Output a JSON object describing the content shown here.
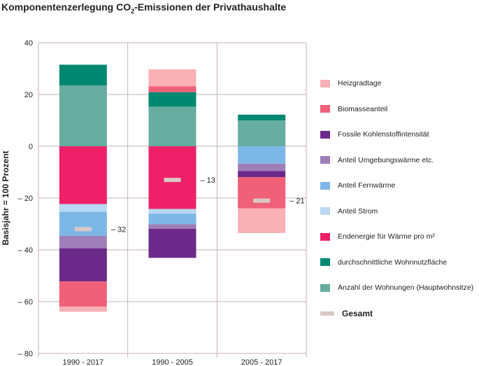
{
  "title": {
    "prefix": "Komponentenzerlegung CO",
    "sub": "2",
    "suffix": "-Emissionen der Privathaushalte"
  },
  "colors": {
    "heizgradtage": "#f9b0b6",
    "biomasse": "#f06078",
    "fossil": "#6b2a8a",
    "umgebung": "#9e7fb8",
    "fernwaerme": "#7db7e8",
    "strom": "#b9d8f2",
    "endenergie": "#ee2168",
    "wohnflaeche": "#008870",
    "wohnungen": "#66ada0",
    "gesamt": "#d9c9c6",
    "grid": "#c7b2b2",
    "axis": "#555555"
  },
  "chart_data": {
    "type": "bar",
    "stacked": true,
    "ylabel": "Basisjahr = 100 Prozent",
    "ylim": [
      -80,
      40
    ],
    "yticks": [
      40,
      20,
      0,
      -20,
      -40,
      -60,
      -80
    ],
    "ytick_labels": [
      "40",
      "20",
      "0",
      "– 20",
      "– 40",
      "– 60",
      "– 80"
    ],
    "categories": [
      "1990 - 2017",
      "1990 - 2005",
      "2005 - 2017"
    ],
    "series": [
      {
        "key": "wohnungen",
        "name": "Anzahl der Wohnungen (Hauptwohnsitze)",
        "values": [
          23.5,
          15.3,
          10.0
        ]
      },
      {
        "key": "wohnflaeche",
        "name": "durchschnittliche Wohnnutzfläche",
        "values": [
          8.0,
          5.6,
          2.2
        ]
      },
      {
        "key": "endenergie",
        "name": "Endenergie für Wärme pro m²",
        "values": [
          -22.3,
          -24.2,
          0
        ]
      },
      {
        "key": "strom",
        "name": "Anteil Strom",
        "values": [
          -3.0,
          -1.8,
          0
        ]
      },
      {
        "key": "fernwaerme",
        "name": "Anteil Fernwärme",
        "values": [
          -9.3,
          -4.1,
          -6.7
        ]
      },
      {
        "key": "umgebung",
        "name": "Anteil Umgebungswärme etc.",
        "values": [
          -4.8,
          -1.8,
          -2.9
        ]
      },
      {
        "key": "fossil",
        "name": "Fossile Kohlenstoffintensität",
        "values": [
          -12.8,
          -11.2,
          -2.3
        ]
      },
      {
        "key": "biomasse",
        "name": "Biomasseanteil",
        "values": [
          -9.7,
          2.3,
          -12.1
        ]
      },
      {
        "key": "heizgradtage",
        "name": "Heizgradtage",
        "values": [
          -2.0,
          6.5,
          -9.5
        ]
      }
    ],
    "totals": {
      "name": "Gesamt",
      "values": [
        -32,
        -13,
        -21
      ],
      "labels": [
        "– 32",
        "– 13",
        "– 21"
      ]
    },
    "legend_order": [
      "heizgradtage",
      "biomasse",
      "fossil",
      "umgebung",
      "fernwaerme",
      "strom",
      "endenergie",
      "wohnflaeche",
      "wohnungen"
    ],
    "legend_position": "right",
    "grid": true
  }
}
